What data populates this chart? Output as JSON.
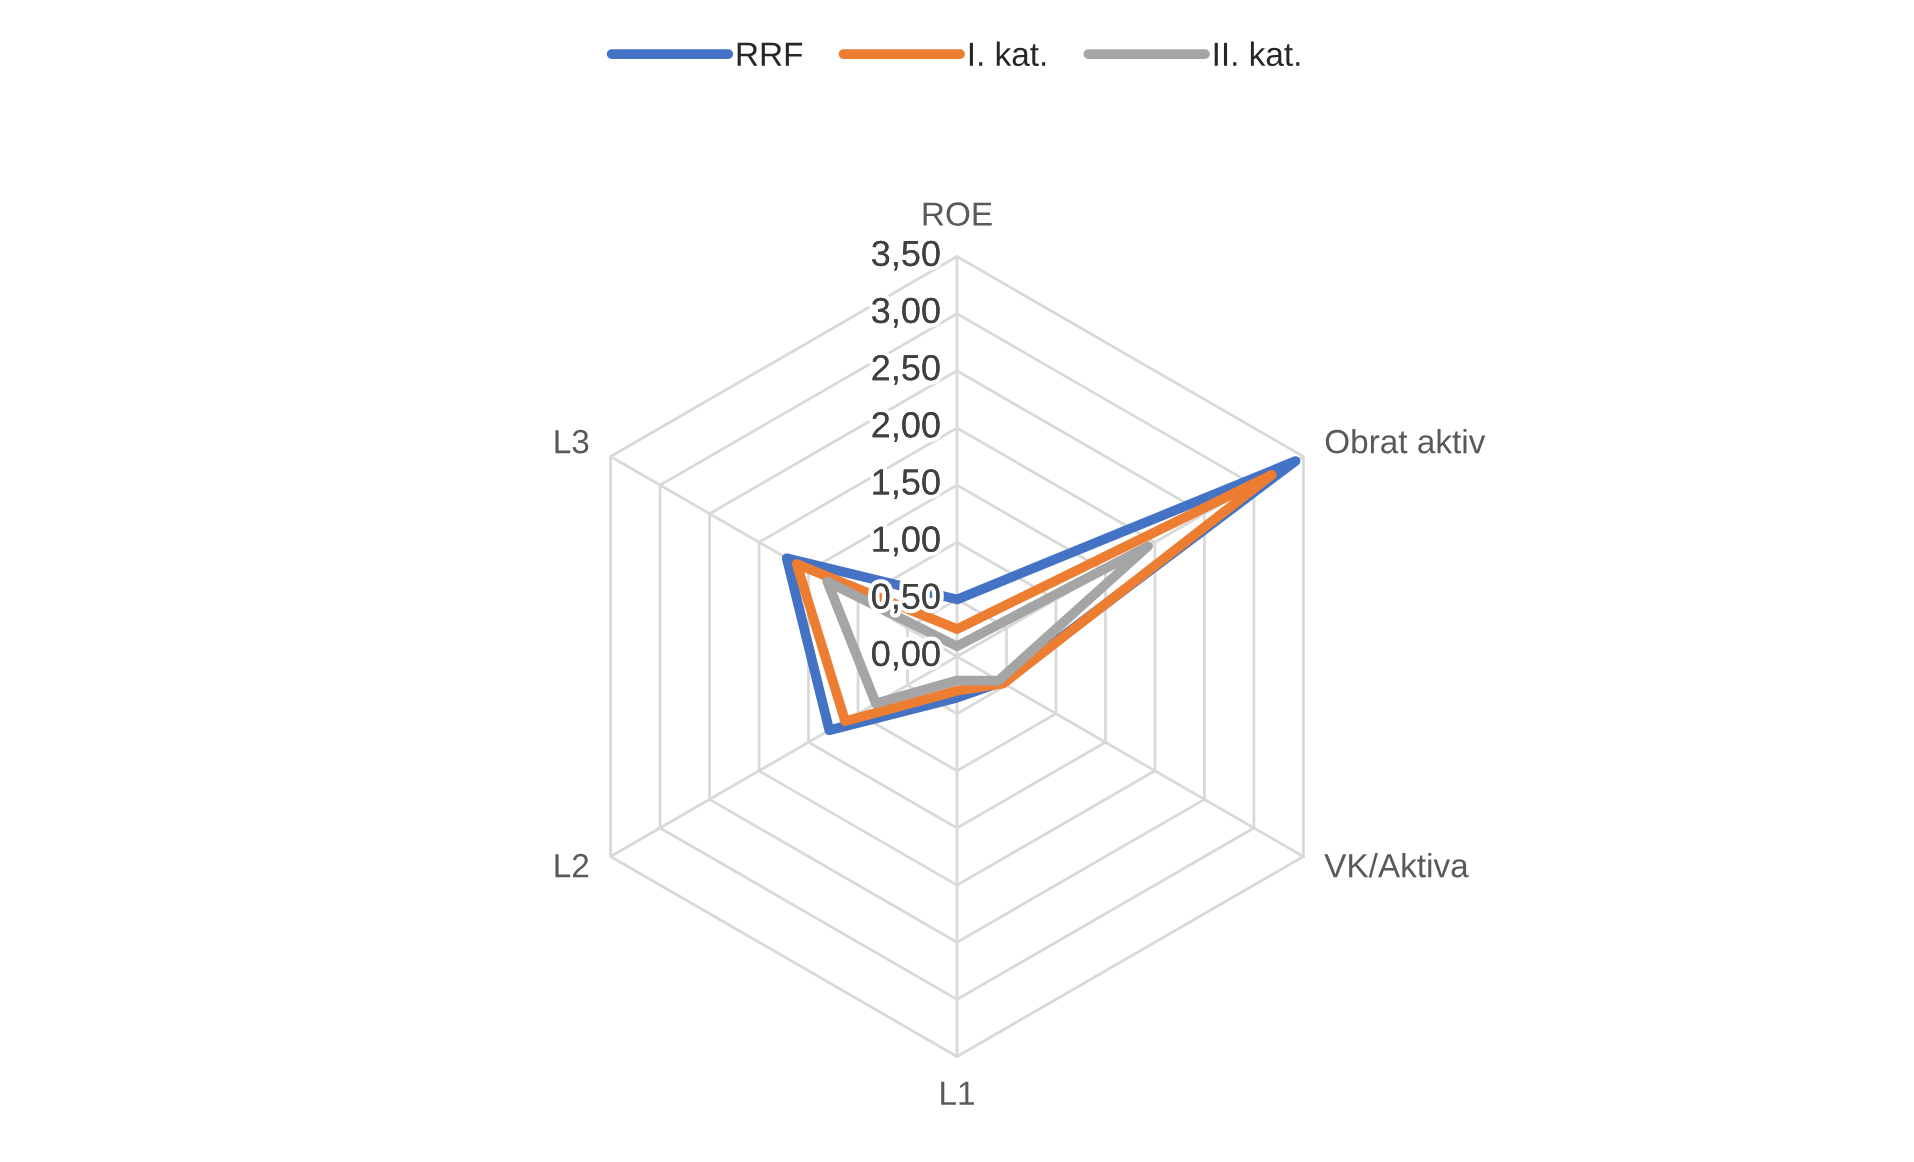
{
  "chart_data": {
    "type": "radar",
    "categories": [
      "ROE",
      "Obrat aktiv",
      "VK/Aktiva",
      "L1",
      "L2",
      "L3"
    ],
    "series": [
      {
        "name": "RRF",
        "color": "#4472c4",
        "values": [
          0.5,
          3.42,
          0.45,
          0.36,
          1.29,
          1.72
        ]
      },
      {
        "name": "I. kat.",
        "color": "#ed7d31",
        "values": [
          0.24,
          3.18,
          0.47,
          0.3,
          1.13,
          1.62
        ]
      },
      {
        "name": "II. kat.",
        "color": "#a5a5a5",
        "values": [
          0.09,
          1.93,
          0.42,
          0.21,
          0.82,
          1.31
        ]
      }
    ],
    "ylim": [
      0,
      3.5
    ],
    "yticks": [
      {
        "value": 0,
        "label": "0,00"
      },
      {
        "value": 0.5,
        "label": "0,50"
      },
      {
        "value": 1,
        "label": "1,00"
      },
      {
        "value": 1.5,
        "label": "1,50"
      },
      {
        "value": 2,
        "label": "2,00"
      },
      {
        "value": 2.5,
        "label": "2,50"
      },
      {
        "value": 3,
        "label": "3,00"
      },
      {
        "value": 3.5,
        "label": "3,50"
      }
    ],
    "grid": true,
    "legend": "top",
    "marker": "none",
    "line_style": "solid"
  }
}
